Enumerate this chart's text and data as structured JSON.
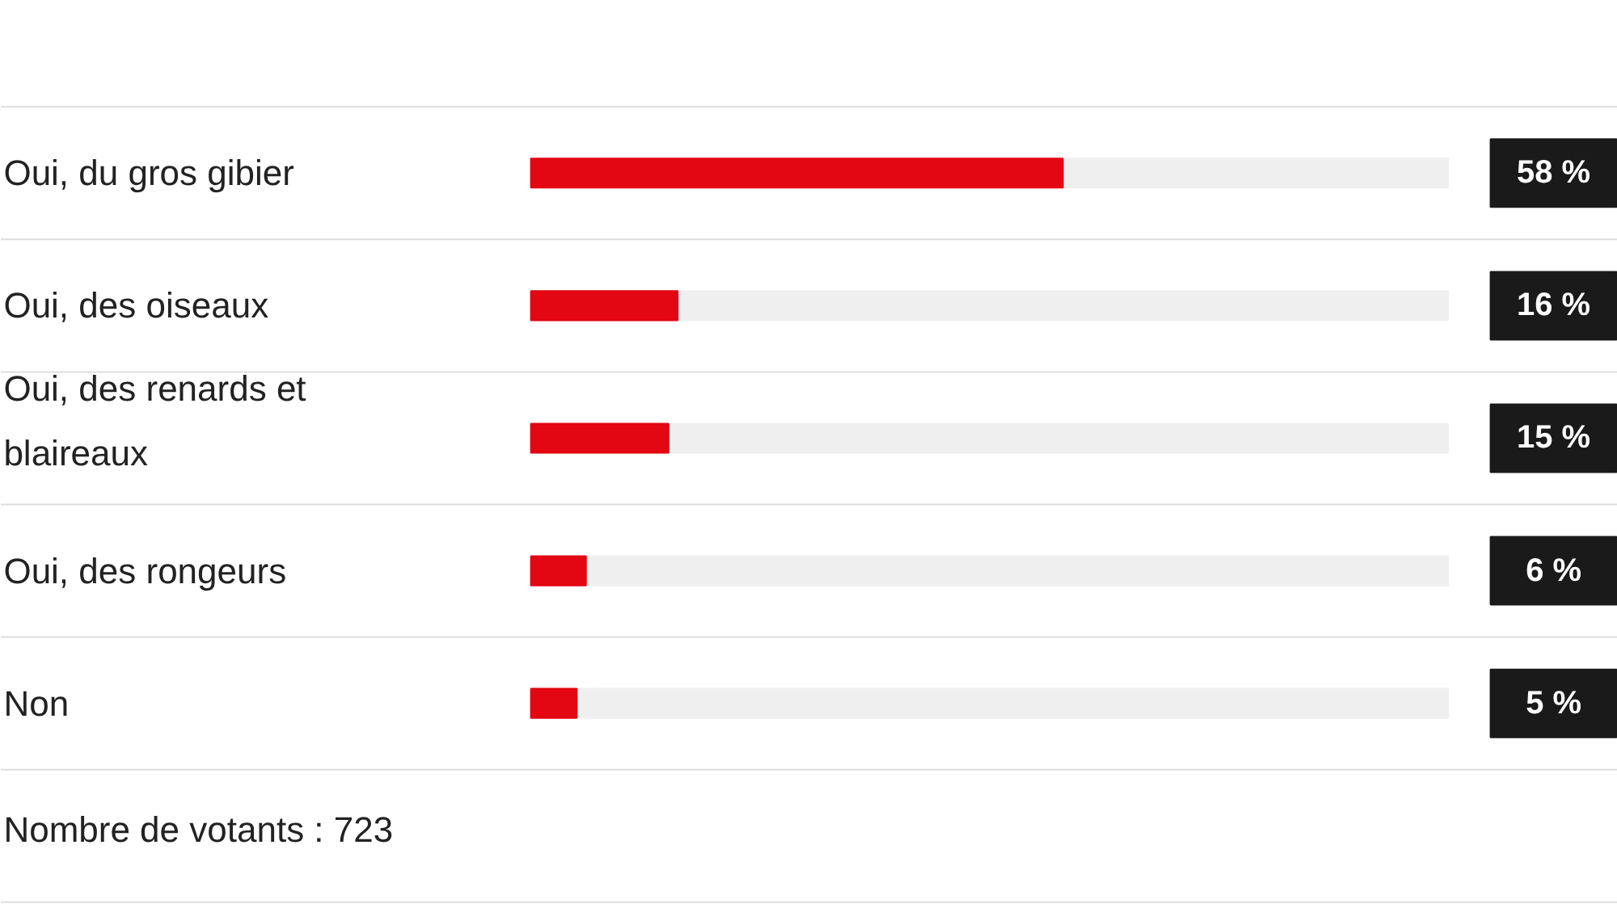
{
  "chart_data": {
    "type": "bar",
    "orientation": "horizontal",
    "categories": [
      "Oui, du gros gibier",
      "Oui, des oiseaux",
      "Oui, des renards et blaireaux",
      "Oui, des rongeurs",
      "Non"
    ],
    "values": [
      58,
      16,
      15,
      6,
      5
    ],
    "color": "#e30613",
    "value_labels": [
      "58 %",
      "16 %",
      "15 %",
      "6 %",
      "5 %"
    ],
    "xlim": [
      0,
      100
    ],
    "annotations": [
      "Nombre de votants : 723"
    ]
  }
}
